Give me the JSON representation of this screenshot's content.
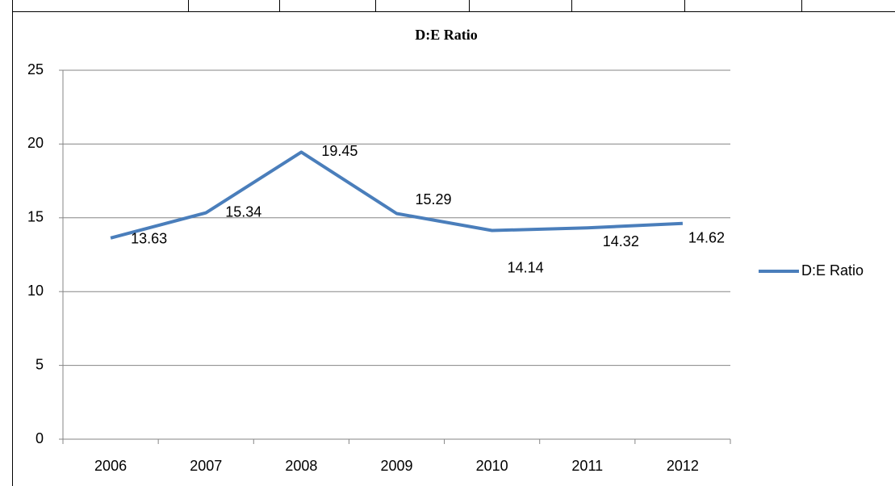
{
  "chart_data": {
    "type": "line",
    "title": "D:E Ratio",
    "categories": [
      "2006",
      "2007",
      "2008",
      "2009",
      "2010",
      "2011",
      "2012"
    ],
    "series": [
      {
        "name": "D:E Ratio",
        "color": "#4a7ebb",
        "values": [
          13.63,
          15.34,
          19.45,
          15.29,
          14.14,
          14.32,
          14.62
        ]
      }
    ],
    "ylim": [
      0,
      25
    ],
    "yticks": [
      0,
      5,
      10,
      15,
      20,
      25
    ],
    "grid": true,
    "legend": "right",
    "data_labels": true
  }
}
